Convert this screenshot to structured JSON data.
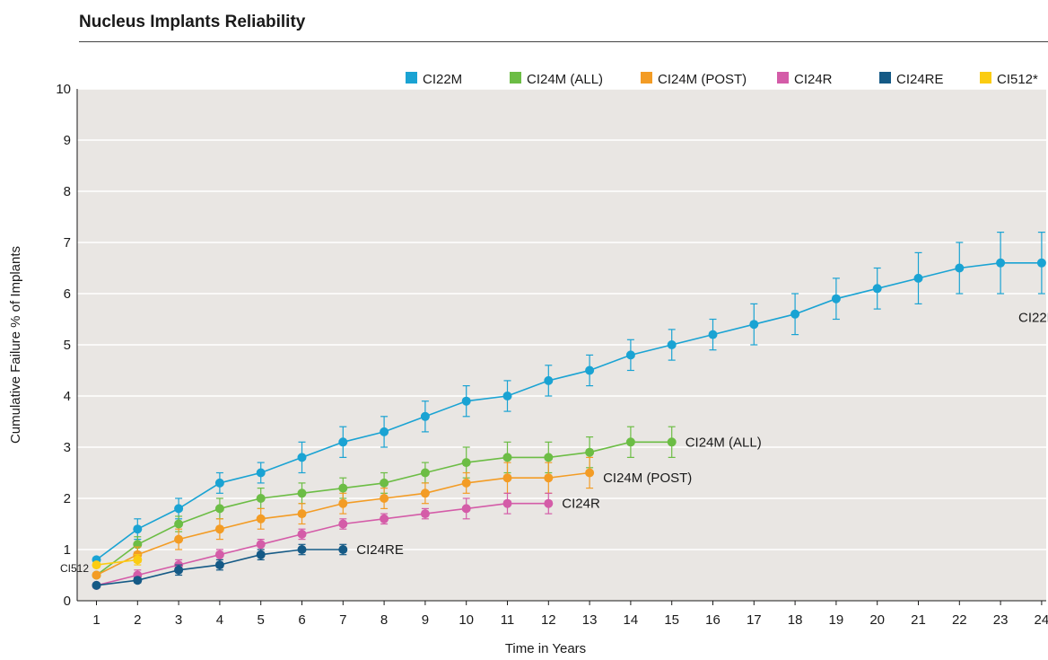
{
  "title": "Nucleus Implants Reliability",
  "chart_data": {
    "type": "line",
    "xlabel": "Time in Years",
    "ylabel": "Cumulative Failure % of Implants",
    "xlim": [
      0.5,
      24.5
    ],
    "ylim": [
      0,
      10
    ],
    "x_ticks": [
      1,
      2,
      3,
      4,
      5,
      6,
      7,
      8,
      9,
      10,
      11,
      12,
      13,
      14,
      15,
      16,
      17,
      18,
      19,
      20,
      21,
      22,
      23,
      24
    ],
    "y_ticks": [
      0,
      1,
      2,
      3,
      4,
      5,
      6,
      7,
      8,
      9,
      10
    ],
    "grid": true,
    "legend_position": "top-right",
    "series": [
      {
        "name": "CI22M",
        "label": "CI22M",
        "color": "#1aa3d3",
        "x": [
          1,
          2,
          3,
          4,
          5,
          6,
          7,
          8,
          9,
          10,
          11,
          12,
          13,
          14,
          15,
          16,
          17,
          18,
          19,
          20,
          21,
          22,
          23,
          24
        ],
        "values": [
          0.8,
          1.4,
          1.8,
          2.3,
          2.5,
          2.8,
          3.1,
          3.3,
          3.6,
          3.9,
          4.0,
          4.3,
          4.5,
          4.8,
          5.0,
          5.2,
          5.4,
          5.6,
          5.9,
          6.1,
          6.3,
          6.5,
          6.6,
          6.6
        ],
        "error": [
          0.05,
          0.2,
          0.2,
          0.2,
          0.2,
          0.3,
          0.3,
          0.3,
          0.3,
          0.3,
          0.3,
          0.3,
          0.3,
          0.3,
          0.3,
          0.3,
          0.4,
          0.4,
          0.4,
          0.4,
          0.5,
          0.5,
          0.6,
          0.6
        ]
      },
      {
        "name": "CI24M (ALL)",
        "label": "CI24M (ALL)",
        "color": "#6cbd45",
        "x": [
          1,
          2,
          3,
          4,
          5,
          6,
          7,
          8,
          9,
          10,
          11,
          12,
          13,
          14,
          15
        ],
        "values": [
          0.5,
          1.1,
          1.5,
          1.8,
          2.0,
          2.1,
          2.2,
          2.3,
          2.5,
          2.7,
          2.8,
          2.8,
          2.9,
          3.1,
          3.1
        ],
        "error": [
          0.05,
          0.15,
          0.15,
          0.2,
          0.2,
          0.2,
          0.2,
          0.2,
          0.2,
          0.3,
          0.3,
          0.3,
          0.3,
          0.3,
          0.3
        ]
      },
      {
        "name": "CI24M (POST)",
        "label": "CI24M (POST)",
        "color": "#f39c25",
        "x": [
          1,
          2,
          3,
          4,
          5,
          6,
          7,
          8,
          9,
          10,
          11,
          12,
          13
        ],
        "values": [
          0.5,
          0.9,
          1.2,
          1.4,
          1.6,
          1.7,
          1.9,
          2.0,
          2.1,
          2.3,
          2.4,
          2.4,
          2.5
        ],
        "error": [
          0.05,
          0.15,
          0.2,
          0.2,
          0.2,
          0.2,
          0.2,
          0.2,
          0.2,
          0.2,
          0.3,
          0.3,
          0.3
        ]
      },
      {
        "name": "CI24R",
        "label": "CI24R",
        "color": "#d45ca8",
        "x": [
          1,
          2,
          3,
          4,
          5,
          6,
          7,
          8,
          9,
          10,
          11,
          12
        ],
        "values": [
          0.3,
          0.5,
          0.7,
          0.9,
          1.1,
          1.3,
          1.5,
          1.6,
          1.7,
          1.8,
          1.9,
          1.9
        ],
        "error": [
          0.05,
          0.1,
          0.1,
          0.1,
          0.1,
          0.1,
          0.1,
          0.1,
          0.1,
          0.2,
          0.2,
          0.2
        ]
      },
      {
        "name": "CI24RE",
        "label": "CI24RE",
        "color": "#155a86",
        "x": [
          1,
          2,
          3,
          4,
          5,
          6,
          7
        ],
        "values": [
          0.3,
          0.4,
          0.6,
          0.7,
          0.9,
          1.0,
          1.0
        ],
        "error": [
          0.03,
          0.05,
          0.1,
          0.1,
          0.1,
          0.1,
          0.1
        ]
      },
      {
        "name": "CI512*",
        "label": "CI512",
        "color": "#fbcc12",
        "x": [
          1,
          2
        ],
        "values": [
          0.7,
          0.8
        ],
        "error": [
          0.05,
          0.1
        ]
      }
    ]
  }
}
